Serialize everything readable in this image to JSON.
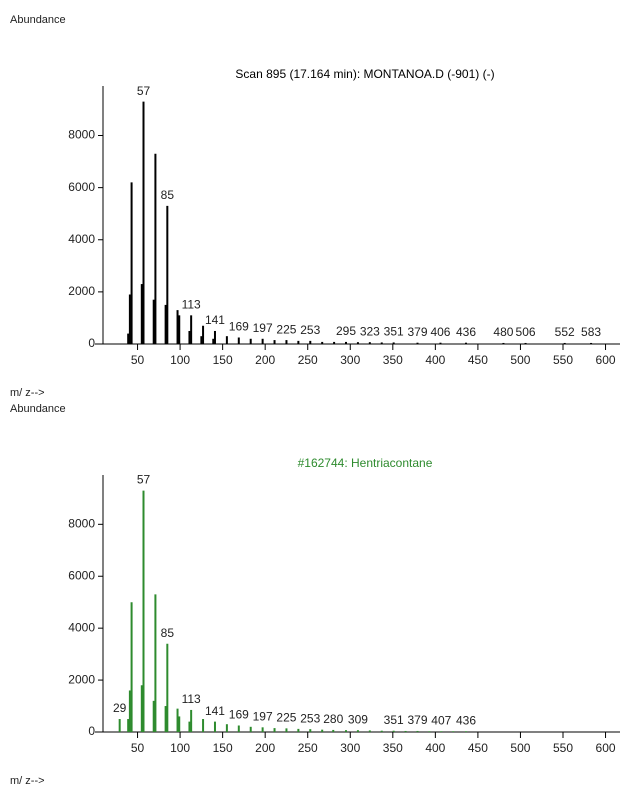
{
  "chart_data": [
    {
      "type": "stem",
      "ylabel": "Abundance",
      "title": "Scan 895 (17.164 min): MONTANOA.D (-901) (-)",
      "xlabel": "m/ z-->",
      "color": "#000000",
      "title_color": "#000000",
      "x": [
        39,
        41,
        43,
        55,
        57,
        69,
        71,
        83,
        85,
        97,
        99,
        111,
        113,
        125,
        127,
        139,
        141,
        155,
        169,
        183,
        197,
        211,
        225,
        239,
        253,
        267,
        281,
        295,
        309,
        323,
        337,
        351,
        379,
        406,
        436,
        480,
        506,
        552,
        583
      ],
      "values": [
        400,
        1900,
        6200,
        2300,
        9300,
        1700,
        7300,
        1500,
        5300,
        1300,
        1100,
        500,
        1100,
        300,
        700,
        200,
        500,
        300,
        250,
        200,
        200,
        150,
        150,
        120,
        120,
        80,
        80,
        80,
        70,
        70,
        60,
        60,
        50,
        50,
        50,
        40,
        40,
        40,
        40
      ],
      "annotations": [
        57,
        85,
        113,
        141,
        169,
        197,
        225,
        253,
        295,
        323,
        351,
        379,
        406,
        436,
        480,
        506,
        552,
        583
      ],
      "xlim": [
        0,
        617
      ],
      "ylim": [
        0,
        9900
      ],
      "xticks": [
        50,
        100,
        150,
        200,
        250,
        300,
        350,
        400,
        450,
        500,
        550,
        600
      ],
      "yticks": [
        0,
        2000,
        4000,
        6000,
        8000
      ]
    },
    {
      "type": "stem",
      "ylabel": "Abundance",
      "title": "#162744: Hentriacontane",
      "xlabel": "m/ z-->",
      "color": "#2e8b2e",
      "title_color": "#2e8b2e",
      "x": [
        29,
        39,
        41,
        43,
        55,
        57,
        69,
        71,
        83,
        85,
        97,
        99,
        111,
        113,
        127,
        141,
        155,
        169,
        183,
        197,
        211,
        225,
        239,
        253,
        267,
        280,
        295,
        309,
        323,
        337,
        351,
        365,
        379,
        393,
        407,
        421,
        436
      ],
      "values": [
        500,
        500,
        1600,
        5000,
        1800,
        9300,
        1200,
        5300,
        1000,
        3400,
        900,
        600,
        400,
        850,
        500,
        400,
        300,
        250,
        200,
        180,
        150,
        140,
        120,
        110,
        90,
        80,
        70,
        70,
        60,
        50,
        50,
        40,
        40,
        30,
        30,
        30,
        30
      ],
      "annotations": [
        29,
        57,
        85,
        113,
        141,
        169,
        197,
        225,
        253,
        280,
        309,
        351,
        379,
        407,
        436
      ],
      "xlim": [
        0,
        617
      ],
      "ylim": [
        0,
        9900
      ],
      "xticks": [
        50,
        100,
        150,
        200,
        250,
        300,
        350,
        400,
        450,
        500,
        550,
        600
      ],
      "yticks": [
        0,
        2000,
        4000,
        6000,
        8000
      ]
    }
  ]
}
